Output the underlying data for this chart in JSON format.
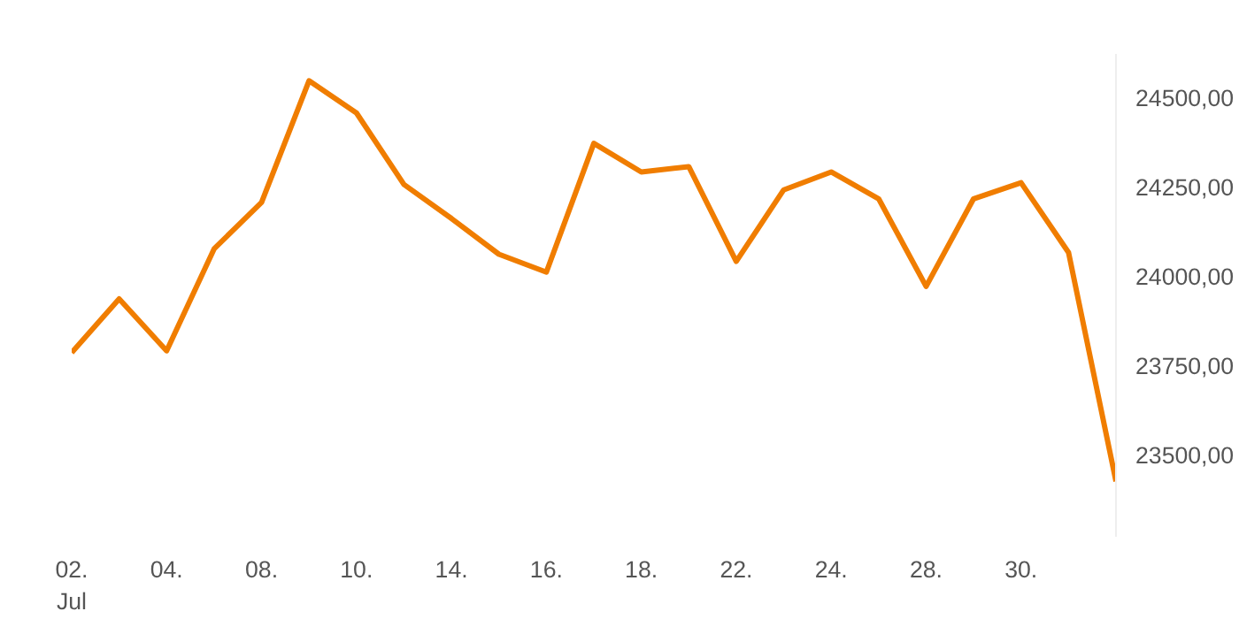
{
  "chart_data": {
    "type": "line",
    "categories": [
      "02.\nJul",
      null,
      "04.",
      null,
      "08.",
      null,
      "10.",
      null,
      "14.",
      null,
      "16.",
      null,
      "18.",
      null,
      "22.",
      null,
      "24.",
      null,
      "28.",
      null,
      "30.",
      null,
      null
    ],
    "series": [
      {
        "color": "#f07d00",
        "values": [
          23785,
          23935,
          23790,
          24075,
          24205,
          24545,
          24455,
          24255,
          24160,
          24060,
          24010,
          24370,
          24290,
          24305,
          24040,
          24240,
          24290,
          24215,
          23970,
          24215,
          24260,
          24065,
          23425
        ]
      }
    ],
    "ylim": [
      23270,
      24620
    ],
    "yticks": [
      {
        "value": 23500,
        "label": "23500,00"
      },
      {
        "value": 23750,
        "label": "23750,00"
      },
      {
        "value": 24000,
        "label": "24000,00"
      },
      {
        "value": 24250,
        "label": "24250,00"
      },
      {
        "value": 24500,
        "label": "24500,00"
      }
    ],
    "grid": false,
    "marker": "none",
    "line_style": "solid"
  }
}
